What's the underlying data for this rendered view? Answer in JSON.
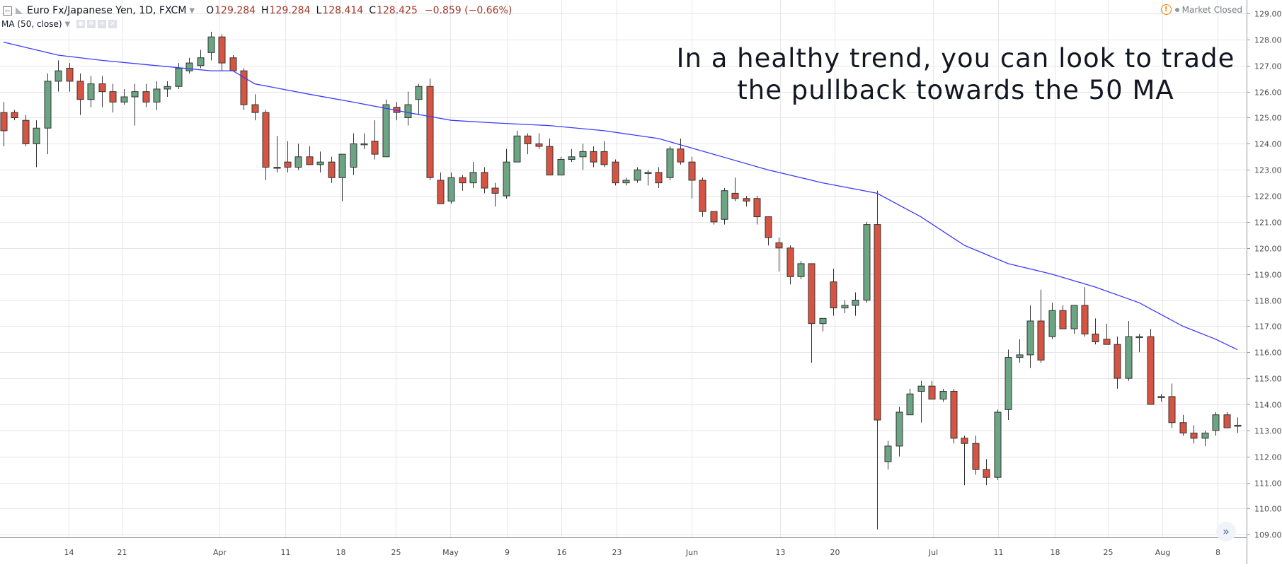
{
  "header": {
    "symbol": "Euro Fx/Japanese Yen, 1D, FXCM",
    "o_label": "O",
    "o_value": "129.284",
    "h_label": "H",
    "h_value": "129.284",
    "l_label": "L",
    "l_value": "128.414",
    "c_label": "C",
    "c_value": "128.425",
    "change": "−0.859 (−0.66%)"
  },
  "indicator": {
    "label": "MA (50, close)"
  },
  "status": {
    "market": "Market Closed"
  },
  "annotation": {
    "line1": "In a healthy trend, you can look to trade",
    "line2": "the pullback towards the 50 MA"
  },
  "colors": {
    "up": "#6ba583",
    "down": "#d75442",
    "ma": "#3a3aff",
    "grid": "#e6e6e6",
    "text": "#131722",
    "axis_text": "#4a4a4a"
  },
  "chart_data": {
    "type": "candlestick",
    "ylim": [
      108.6,
      129.3
    ],
    "y_ticks": [
      "129.000",
      "128.000",
      "127.000",
      "126.000",
      "125.000",
      "124.000",
      "123.000",
      "122.000",
      "121.000",
      "120.000",
      "119.000",
      "118.000",
      "117.000",
      "116.000",
      "115.000",
      "114.000",
      "113.000",
      "112.000",
      "111.000",
      "110.000",
      "109.000"
    ],
    "x_ticks": [
      "14",
      "21",
      "Apr",
      "11",
      "18",
      "25",
      "May",
      "9",
      "16",
      "23",
      "Jun",
      "13",
      "20",
      "Jul",
      "11",
      "18",
      "25",
      "Aug",
      "8"
    ],
    "candles": [
      {
        "o": 125.2,
        "h": 125.6,
        "l": 123.9,
        "c": 124.5
      },
      {
        "o": 125.2,
        "h": 125.3,
        "l": 124.9,
        "c": 125.0
      },
      {
        "o": 124.9,
        "h": 125.1,
        "l": 123.9,
        "c": 124.0
      },
      {
        "o": 124.0,
        "h": 124.9,
        "l": 123.1,
        "c": 124.6
      },
      {
        "o": 124.6,
        "h": 126.7,
        "l": 123.6,
        "c": 126.4
      },
      {
        "o": 126.4,
        "h": 127.2,
        "l": 126.0,
        "c": 126.8
      },
      {
        "o": 126.9,
        "h": 127.1,
        "l": 126.0,
        "c": 126.4
      },
      {
        "o": 126.4,
        "h": 126.7,
        "l": 125.1,
        "c": 125.7
      },
      {
        "o": 125.7,
        "h": 126.6,
        "l": 125.4,
        "c": 126.3
      },
      {
        "o": 126.3,
        "h": 126.6,
        "l": 125.4,
        "c": 126.0
      },
      {
        "o": 126.0,
        "h": 126.3,
        "l": 125.2,
        "c": 125.6
      },
      {
        "o": 125.6,
        "h": 126.1,
        "l": 125.5,
        "c": 125.8
      },
      {
        "o": 125.8,
        "h": 126.3,
        "l": 124.7,
        "c": 126.0
      },
      {
        "o": 126.0,
        "h": 126.3,
        "l": 125.4,
        "c": 125.6
      },
      {
        "o": 125.6,
        "h": 126.4,
        "l": 125.3,
        "c": 126.1
      },
      {
        "o": 126.1,
        "h": 126.4,
        "l": 125.8,
        "c": 126.2
      },
      {
        "o": 126.2,
        "h": 127.1,
        "l": 126.1,
        "c": 126.9
      },
      {
        "o": 126.8,
        "h": 127.3,
        "l": 126.7,
        "c": 127.1
      },
      {
        "o": 127.0,
        "h": 127.6,
        "l": 126.9,
        "c": 127.3
      },
      {
        "o": 127.5,
        "h": 128.3,
        "l": 127.2,
        "c": 128.1
      },
      {
        "o": 128.1,
        "h": 128.2,
        "l": 126.8,
        "c": 127.1
      },
      {
        "o": 127.3,
        "h": 127.4,
        "l": 126.8,
        "c": 126.8
      },
      {
        "o": 126.8,
        "h": 126.9,
        "l": 125.3,
        "c": 125.5
      },
      {
        "o": 125.5,
        "h": 125.9,
        "l": 124.9,
        "c": 125.2
      },
      {
        "o": 125.2,
        "h": 125.3,
        "l": 122.6,
        "c": 123.1
      },
      {
        "o": 123.1,
        "h": 124.3,
        "l": 122.9,
        "c": 123.1
      },
      {
        "o": 123.3,
        "h": 124.1,
        "l": 122.9,
        "c": 123.1
      },
      {
        "o": 123.1,
        "h": 124.0,
        "l": 123.0,
        "c": 123.5
      },
      {
        "o": 123.5,
        "h": 123.9,
        "l": 123.2,
        "c": 123.2
      },
      {
        "o": 123.2,
        "h": 123.7,
        "l": 122.9,
        "c": 123.3
      },
      {
        "o": 123.3,
        "h": 123.5,
        "l": 122.5,
        "c": 122.7
      },
      {
        "o": 122.7,
        "h": 123.6,
        "l": 121.8,
        "c": 123.6
      },
      {
        "o": 123.1,
        "h": 124.4,
        "l": 122.8,
        "c": 124.0
      },
      {
        "o": 124.0,
        "h": 124.4,
        "l": 123.8,
        "c": 124.0
      },
      {
        "o": 124.1,
        "h": 124.9,
        "l": 123.4,
        "c": 123.6
      },
      {
        "o": 123.5,
        "h": 125.7,
        "l": 123.5,
        "c": 125.5
      },
      {
        "o": 125.4,
        "h": 125.6,
        "l": 124.9,
        "c": 125.2
      },
      {
        "o": 125.0,
        "h": 126.0,
        "l": 124.7,
        "c": 125.5
      },
      {
        "o": 125.7,
        "h": 126.3,
        "l": 125.1,
        "c": 126.2
      },
      {
        "o": 126.2,
        "h": 126.5,
        "l": 122.6,
        "c": 122.7
      },
      {
        "o": 122.6,
        "h": 122.9,
        "l": 121.7,
        "c": 121.7
      },
      {
        "o": 121.8,
        "h": 122.9,
        "l": 121.7,
        "c": 122.7
      },
      {
        "o": 122.7,
        "h": 122.8,
        "l": 122.2,
        "c": 122.5
      },
      {
        "o": 122.5,
        "h": 123.3,
        "l": 122.3,
        "c": 122.9
      },
      {
        "o": 122.9,
        "h": 123.1,
        "l": 122.1,
        "c": 122.3
      },
      {
        "o": 122.3,
        "h": 122.5,
        "l": 121.6,
        "c": 122.1
      },
      {
        "o": 122.0,
        "h": 123.8,
        "l": 121.9,
        "c": 123.3
      },
      {
        "o": 123.3,
        "h": 124.5,
        "l": 123.3,
        "c": 124.3
      },
      {
        "o": 124.3,
        "h": 124.4,
        "l": 123.6,
        "c": 124.0
      },
      {
        "o": 124.0,
        "h": 124.4,
        "l": 123.8,
        "c": 123.9
      },
      {
        "o": 123.9,
        "h": 124.2,
        "l": 122.9,
        "c": 122.8
      },
      {
        "o": 122.8,
        "h": 123.5,
        "l": 122.8,
        "c": 123.4
      },
      {
        "o": 123.4,
        "h": 123.8,
        "l": 123.3,
        "c": 123.5
      },
      {
        "o": 123.5,
        "h": 124.0,
        "l": 123.0,
        "c": 123.7
      },
      {
        "o": 123.7,
        "h": 123.9,
        "l": 123.1,
        "c": 123.3
      },
      {
        "o": 123.7,
        "h": 124.1,
        "l": 123.1,
        "c": 123.2
      },
      {
        "o": 123.3,
        "h": 123.4,
        "l": 122.4,
        "c": 122.5
      },
      {
        "o": 122.5,
        "h": 122.7,
        "l": 122.4,
        "c": 122.6
      },
      {
        "o": 122.6,
        "h": 123.1,
        "l": 122.5,
        "c": 123.0
      },
      {
        "o": 122.9,
        "h": 123.0,
        "l": 122.4,
        "c": 122.9
      },
      {
        "o": 122.9,
        "h": 123.1,
        "l": 122.3,
        "c": 122.5
      },
      {
        "o": 122.7,
        "h": 123.9,
        "l": 122.6,
        "c": 123.8
      },
      {
        "o": 123.8,
        "h": 124.2,
        "l": 123.2,
        "c": 123.3
      },
      {
        "o": 123.3,
        "h": 123.5,
        "l": 121.9,
        "c": 122.6
      },
      {
        "o": 122.6,
        "h": 122.7,
        "l": 121.2,
        "c": 121.4
      },
      {
        "o": 121.4,
        "h": 121.4,
        "l": 120.9,
        "c": 121.0
      },
      {
        "o": 121.1,
        "h": 122.3,
        "l": 120.9,
        "c": 122.2
      },
      {
        "o": 122.1,
        "h": 122.7,
        "l": 121.8,
        "c": 121.9
      },
      {
        "o": 121.9,
        "h": 122.0,
        "l": 121.6,
        "c": 121.8
      },
      {
        "o": 121.9,
        "h": 122.0,
        "l": 120.9,
        "c": 121.2
      },
      {
        "o": 121.2,
        "h": 121.2,
        "l": 120.1,
        "c": 120.4
      },
      {
        "o": 120.2,
        "h": 120.4,
        "l": 119.1,
        "c": 120.0
      },
      {
        "o": 120.0,
        "h": 120.1,
        "l": 118.6,
        "c": 118.9
      },
      {
        "o": 118.9,
        "h": 119.5,
        "l": 118.8,
        "c": 119.4
      },
      {
        "o": 119.4,
        "h": 119.4,
        "l": 115.6,
        "c": 117.1
      },
      {
        "o": 117.1,
        "h": 117.3,
        "l": 116.8,
        "c": 117.3
      },
      {
        "o": 118.7,
        "h": 119.2,
        "l": 117.4,
        "c": 117.7
      },
      {
        "o": 117.7,
        "h": 118.0,
        "l": 117.5,
        "c": 117.8
      },
      {
        "o": 117.8,
        "h": 118.3,
        "l": 117.4,
        "c": 118.0
      },
      {
        "o": 118.0,
        "h": 121.0,
        "l": 117.9,
        "c": 120.9
      },
      {
        "o": 120.9,
        "h": 122.2,
        "l": 109.2,
        "c": 113.4
      },
      {
        "o": 111.8,
        "h": 112.6,
        "l": 111.5,
        "c": 112.4
      },
      {
        "o": 112.4,
        "h": 113.9,
        "l": 112.0,
        "c": 113.7
      },
      {
        "o": 113.6,
        "h": 114.6,
        "l": 113.6,
        "c": 114.4
      },
      {
        "o": 114.5,
        "h": 114.9,
        "l": 113.3,
        "c": 114.7
      },
      {
        "o": 114.7,
        "h": 114.9,
        "l": 114.2,
        "c": 114.2
      },
      {
        "o": 114.2,
        "h": 114.6,
        "l": 114.1,
        "c": 114.5
      },
      {
        "o": 114.5,
        "h": 114.6,
        "l": 112.5,
        "c": 112.7
      },
      {
        "o": 112.7,
        "h": 112.8,
        "l": 110.9,
        "c": 112.5
      },
      {
        "o": 112.5,
        "h": 112.8,
        "l": 111.3,
        "c": 111.5
      },
      {
        "o": 111.5,
        "h": 111.9,
        "l": 110.9,
        "c": 111.2
      },
      {
        "o": 111.2,
        "h": 113.8,
        "l": 111.1,
        "c": 113.7
      },
      {
        "o": 113.8,
        "h": 116.1,
        "l": 113.4,
        "c": 115.8
      },
      {
        "o": 115.8,
        "h": 116.5,
        "l": 115.6,
        "c": 115.9
      },
      {
        "o": 115.9,
        "h": 117.8,
        "l": 115.4,
        "c": 117.2
      },
      {
        "o": 117.2,
        "h": 118.4,
        "l": 115.6,
        "c": 115.7
      },
      {
        "o": 116.6,
        "h": 117.9,
        "l": 116.5,
        "c": 117.6
      },
      {
        "o": 117.6,
        "h": 117.8,
        "l": 116.9,
        "c": 116.9
      },
      {
        "o": 116.9,
        "h": 117.8,
        "l": 116.7,
        "c": 117.8
      },
      {
        "o": 117.8,
        "h": 118.5,
        "l": 116.6,
        "c": 116.7
      },
      {
        "o": 116.7,
        "h": 117.3,
        "l": 116.3,
        "c": 116.4
      },
      {
        "o": 116.5,
        "h": 117.1,
        "l": 116.3,
        "c": 116.3
      },
      {
        "o": 116.3,
        "h": 116.6,
        "l": 114.6,
        "c": 115.0
      },
      {
        "o": 115.0,
        "h": 117.2,
        "l": 114.9,
        "c": 116.6
      },
      {
        "o": 116.6,
        "h": 116.7,
        "l": 116.0,
        "c": 116.6
      },
      {
        "o": 116.6,
        "h": 116.9,
        "l": 114.0,
        "c": 114.0
      },
      {
        "o": 114.3,
        "h": 114.4,
        "l": 114.1,
        "c": 114.3
      },
      {
        "o": 114.3,
        "h": 114.8,
        "l": 113.1,
        "c": 113.3
      },
      {
        "o": 113.3,
        "h": 113.6,
        "l": 112.8,
        "c": 112.9
      },
      {
        "o": 112.9,
        "h": 113.2,
        "l": 112.5,
        "c": 112.7
      },
      {
        "o": 112.7,
        "h": 113.0,
        "l": 112.4,
        "c": 112.9
      },
      {
        "o": 113.0,
        "h": 113.7,
        "l": 112.8,
        "c": 113.6
      },
      {
        "o": 113.6,
        "h": 113.7,
        "l": 113.1,
        "c": 113.1
      },
      {
        "o": 113.2,
        "h": 113.5,
        "l": 112.9,
        "c": 113.2
      }
    ],
    "ma_50": [
      {
        "i": 0,
        "v": 127.9
      },
      {
        "i": 5,
        "v": 127.4
      },
      {
        "i": 9,
        "v": 127.2
      },
      {
        "i": 14,
        "v": 127.0
      },
      {
        "i": 19,
        "v": 126.8
      },
      {
        "i": 21,
        "v": 126.8
      },
      {
        "i": 23,
        "v": 126.3
      },
      {
        "i": 28,
        "v": 125.9
      },
      {
        "i": 32,
        "v": 125.6
      },
      {
        "i": 37,
        "v": 125.2
      },
      {
        "i": 41,
        "v": 124.9
      },
      {
        "i": 45,
        "v": 124.8
      },
      {
        "i": 50,
        "v": 124.7
      },
      {
        "i": 55,
        "v": 124.5
      },
      {
        "i": 60,
        "v": 124.2
      },
      {
        "i": 65,
        "v": 123.6
      },
      {
        "i": 70,
        "v": 123.0
      },
      {
        "i": 75,
        "v": 122.5
      },
      {
        "i": 80,
        "v": 122.1
      },
      {
        "i": 84,
        "v": 121.2
      },
      {
        "i": 88,
        "v": 120.1
      },
      {
        "i": 92,
        "v": 119.4
      },
      {
        "i": 96,
        "v": 119.0
      },
      {
        "i": 100,
        "v": 118.5
      },
      {
        "i": 104,
        "v": 117.9
      },
      {
        "i": 108,
        "v": 117.0
      },
      {
        "i": 111,
        "v": 116.5
      },
      {
        "i": 113,
        "v": 116.1
      }
    ]
  }
}
